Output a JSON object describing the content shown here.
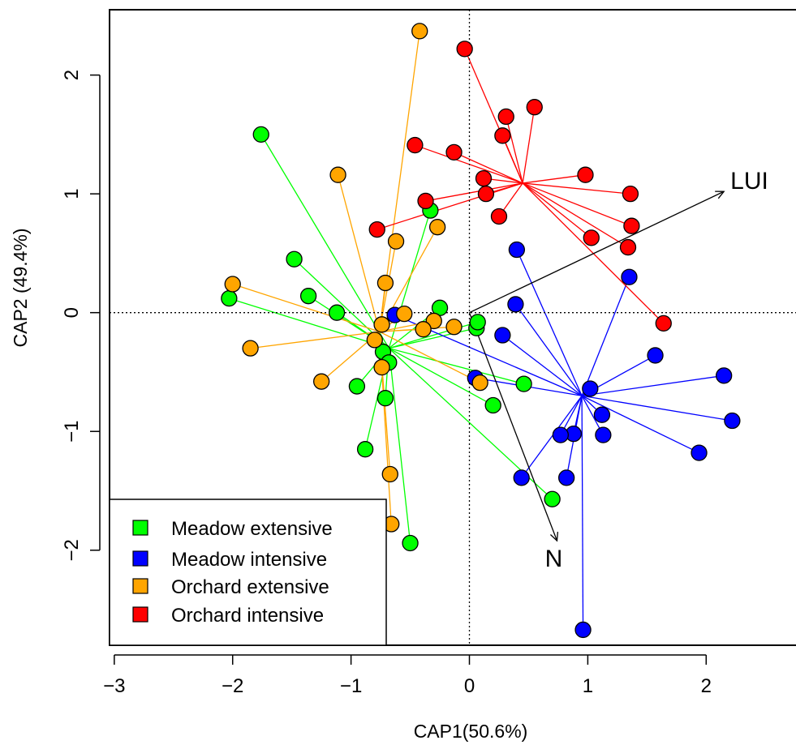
{
  "chart_data": {
    "type": "scatter",
    "xlabel": "CAP1(50.6%)",
    "ylabel": "CAP2 (49.4%)",
    "xlim": [
      -3.04,
      2.8
    ],
    "ylim": [
      -2.8,
      2.55
    ],
    "x_ticks": [
      "-3",
      "-2",
      "-1",
      "0",
      "1",
      "2"
    ],
    "y_ticks": [
      "-2",
      "-1",
      "0",
      "1",
      "2"
    ],
    "reference_lines": {
      "x": 0,
      "y": 0,
      "style": "dotted"
    },
    "legend": {
      "placement": "bottom-left"
    },
    "series": [
      {
        "name": "Meadow extensive",
        "color": "#00ff00",
        "centroid": [
          -0.68,
          -0.3
        ],
        "points": [
          [
            -1.76,
            1.5
          ],
          [
            -2.03,
            0.12
          ],
          [
            -1.48,
            0.45
          ],
          [
            -1.36,
            0.14
          ],
          [
            -1.12,
            0.0
          ],
          [
            -0.33,
            0.86
          ],
          [
            -0.25,
            0.04
          ],
          [
            -0.73,
            -0.33
          ],
          [
            -0.68,
            -0.42
          ],
          [
            -0.95,
            -0.62
          ],
          [
            -0.71,
            -0.72
          ],
          [
            -0.88,
            -1.15
          ],
          [
            -0.5,
            -1.94
          ],
          [
            0.06,
            -0.13
          ],
          [
            0.07,
            -0.08
          ],
          [
            0.2,
            -0.78
          ],
          [
            0.46,
            -0.6
          ],
          [
            0.7,
            -1.57
          ]
        ]
      },
      {
        "name": "Meadow intensive",
        "color": "#0000ff",
        "centroid": [
          0.95,
          -0.7
        ],
        "points": [
          [
            -0.63,
            -0.02
          ],
          [
            0.05,
            -0.55
          ],
          [
            0.28,
            -0.19
          ],
          [
            0.39,
            0.07
          ],
          [
            0.4,
            0.53
          ],
          [
            1.35,
            0.3
          ],
          [
            1.57,
            -0.36
          ],
          [
            2.15,
            -0.53
          ],
          [
            2.22,
            -0.91
          ],
          [
            1.94,
            -1.18
          ],
          [
            1.02,
            -0.64
          ],
          [
            1.12,
            -0.86
          ],
          [
            1.13,
            -1.03
          ],
          [
            0.88,
            -1.02
          ],
          [
            0.77,
            -1.03
          ],
          [
            0.82,
            -1.39
          ],
          [
            0.44,
            -1.39
          ],
          [
            0.96,
            -2.67
          ]
        ]
      },
      {
        "name": "Orchard extensive",
        "color": "#ffa500",
        "centroid": [
          -0.76,
          -0.16
        ],
        "points": [
          [
            -0.42,
            2.37
          ],
          [
            -1.11,
            1.16
          ],
          [
            -0.27,
            0.72
          ],
          [
            -0.62,
            0.6
          ],
          [
            -0.71,
            0.25
          ],
          [
            -2.0,
            0.24
          ],
          [
            -0.55,
            -0.01
          ],
          [
            -0.3,
            -0.07
          ],
          [
            -0.39,
            -0.14
          ],
          [
            -0.74,
            -0.1
          ],
          [
            -0.8,
            -0.23
          ],
          [
            -0.74,
            -0.46
          ],
          [
            -0.13,
            -0.12
          ],
          [
            0.09,
            -0.59
          ],
          [
            -1.85,
            -0.3
          ],
          [
            -1.25,
            -0.58
          ],
          [
            -0.67,
            -1.36
          ],
          [
            -0.66,
            -1.78
          ]
        ]
      },
      {
        "name": "Orchard intensive",
        "color": "#ff0000",
        "centroid": [
          0.45,
          1.09
        ],
        "points": [
          [
            -0.04,
            2.22
          ],
          [
            0.31,
            1.65
          ],
          [
            0.55,
            1.73
          ],
          [
            0.28,
            1.49
          ],
          [
            -0.46,
            1.41
          ],
          [
            -0.13,
            1.35
          ],
          [
            0.12,
            1.13
          ],
          [
            0.14,
            1.0
          ],
          [
            -0.37,
            0.94
          ],
          [
            0.98,
            1.16
          ],
          [
            1.36,
            1.0
          ],
          [
            1.37,
            0.73
          ],
          [
            1.34,
            0.55
          ],
          [
            1.03,
            0.63
          ],
          [
            0.25,
            0.81
          ],
          [
            -0.78,
            0.7
          ],
          [
            1.64,
            -0.09
          ]
        ]
      }
    ],
    "arrows": [
      {
        "label": "LUI",
        "from": [
          0,
          0
        ],
        "to": [
          2.15,
          1.02
        ]
      },
      {
        "label": "N",
        "from": [
          0,
          0
        ],
        "to": [
          0.74,
          -1.92
        ]
      }
    ]
  }
}
